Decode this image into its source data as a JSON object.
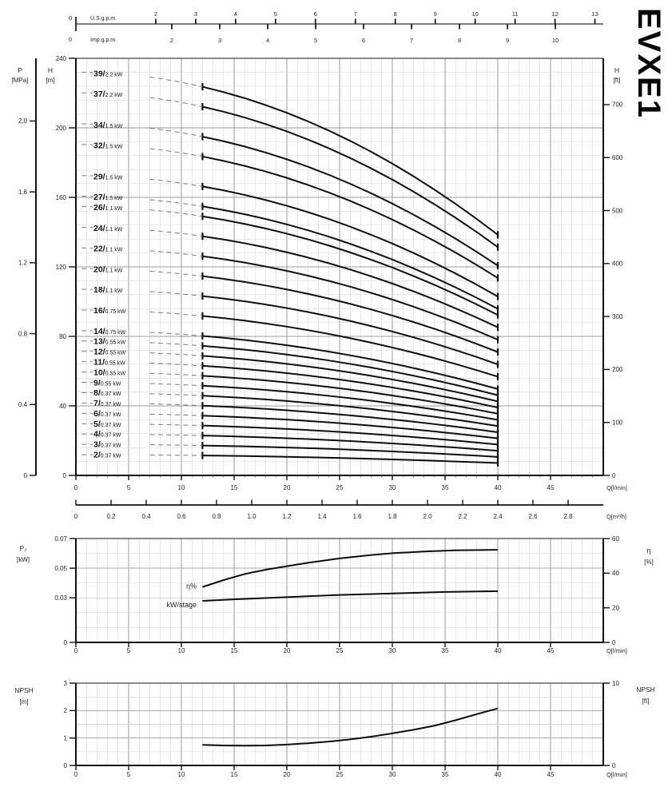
{
  "page": {
    "model_label": "EVXE1"
  },
  "colors": {
    "curve": "#0d0d0d",
    "axis": "#111111",
    "grid_minor": "#d2d2d2",
    "grid_major": "#9b9b9b",
    "dash_line": "#7a7a7a",
    "text": "#222222"
  },
  "chart_data": [
    {
      "type": "line",
      "name": "head-capacity-curves",
      "x_axis": {
        "label": "Q[l/min]",
        "min": 0,
        "max": 50,
        "major_ticks": [
          0,
          5,
          10,
          15,
          20,
          25,
          30,
          35,
          40,
          45
        ],
        "minor_step": 1
      },
      "x_axis_m3h": {
        "label": "Q[m³/h]",
        "ticks": [
          "0",
          "0.2",
          "0.4",
          "0.6",
          "0.8",
          "1.0",
          "1.2",
          "1.4",
          "1.6",
          "1.8",
          "2.0",
          "2.2",
          "2.4",
          "2.6",
          "2.8"
        ],
        "lpm_per_m3h": 16.6667
      },
      "top_axes": {
        "us_gpm": {
          "label": "U.S.g.p.m.",
          "zero": "0",
          "ticks": [
            2,
            3,
            4,
            5,
            6,
            7,
            8,
            9,
            10,
            11,
            12,
            13
          ],
          "lpm_per_unit": 3.7854
        },
        "imp_gpm": {
          "label": "Imp.g.p.m.",
          "zero": "0",
          "ticks": [
            2,
            3,
            4,
            5,
            6,
            7,
            8,
            9,
            10
          ],
          "lpm_per_unit": 4.5461
        }
      },
      "y_left": {
        "label": "H",
        "unit": "[m]",
        "min": 0,
        "max": 240,
        "ticks": [
          240,
          200,
          160,
          120,
          80,
          40,
          0
        ],
        "minor_step": 8
      },
      "y_outer_left": {
        "label": "P",
        "unit": "[MPa]",
        "ticks": [
          "2.0",
          "1.6",
          "1.2",
          "0.8",
          "0.4",
          "0"
        ],
        "meters_per_mpa": 101.97
      },
      "y_right": {
        "label": "H",
        "unit": "[ft]",
        "ticks": [
          700,
          600,
          500,
          400,
          300,
          200,
          100,
          0
        ],
        "meters_per_ft": 0.3048
      },
      "curve_model": {
        "head_per_stage_shutoff_m": 5.95,
        "quad_coeff": 0.0015,
        "q_solid": [
          12,
          40
        ],
        "q_label_dash": [
          0.55,
          1.6
        ],
        "q_lead_dash": [
          7.0,
          12.0
        ]
      },
      "series": [
        {
          "stages": "39",
          "power": "2.2 kW"
        },
        {
          "stages": "37",
          "power": "2.2 kW"
        },
        {
          "stages": "34",
          "power": "1.5 kW"
        },
        {
          "stages": "32",
          "power": "1.5 kW"
        },
        {
          "stages": "29",
          "power": "1.5 kW"
        },
        {
          "stages": "27",
          "power": "1.5 kW"
        },
        {
          "stages": "26",
          "power": "1.1 kW"
        },
        {
          "stages": "24",
          "power": "1.1 kW"
        },
        {
          "stages": "22",
          "power": "1.1 kW"
        },
        {
          "stages": "20",
          "power": "1.1 kW"
        },
        {
          "stages": "18",
          "power": "1.1 kW"
        },
        {
          "stages": "16",
          "power": "0.75 kW"
        },
        {
          "stages": "14",
          "power": "0.75 kW"
        },
        {
          "stages": "13",
          "power": "0.55 kW"
        },
        {
          "stages": "12",
          "power": "0.55 kW"
        },
        {
          "stages": "11",
          "power": "0.55 kW"
        },
        {
          "stages": "10",
          "power": "0.55 kW"
        },
        {
          "stages": "9",
          "power": "0.55 kW"
        },
        {
          "stages": "8",
          "power": "0.37 kW"
        },
        {
          "stages": "7",
          "power": "0.37 kW"
        },
        {
          "stages": "6",
          "power": "0.37 kW"
        },
        {
          "stages": "5",
          "power": "0.37 kW"
        },
        {
          "stages": "4",
          "power": "0.37 kW"
        },
        {
          "stages": "3",
          "power": "0.37 kW"
        },
        {
          "stages": "2",
          "power": "0.37 kW"
        }
      ]
    },
    {
      "type": "line",
      "name": "power-and-efficiency",
      "x_axis": {
        "label": "Q[l/min]",
        "min": 0,
        "max": 50,
        "major_ticks": [
          0,
          5,
          10,
          15,
          20,
          25,
          30,
          35,
          40,
          45
        ],
        "minor_step": 1
      },
      "y_left": {
        "label": "P₂",
        "unit": "[kW]",
        "min": 0,
        "max": 0.07,
        "ticks": [
          "0.07",
          "0.05",
          "0.03",
          "0"
        ],
        "minor_step": 0.01
      },
      "y_right": {
        "label": "η",
        "unit": "[%]",
        "min": 0,
        "max": 60,
        "ticks": [
          60,
          40,
          20,
          0
        ]
      },
      "series": [
        {
          "name": "η%",
          "axis": "right",
          "points": [
            [
              12,
              32
            ],
            [
              14,
              36
            ],
            [
              16,
              39.5
            ],
            [
              18,
              42
            ],
            [
              20,
              44
            ],
            [
              22,
              46
            ],
            [
              25,
              48.5
            ],
            [
              28,
              50.5
            ],
            [
              30,
              51.5
            ],
            [
              33,
              52.5
            ],
            [
              36,
              53.2
            ],
            [
              40,
              53.5
            ]
          ]
        },
        {
          "name": "kW/stage",
          "axis": "left",
          "points": [
            [
              12,
              0.028
            ],
            [
              15,
              0.029
            ],
            [
              20,
              0.0305
            ],
            [
              25,
              0.032
            ],
            [
              30,
              0.033
            ],
            [
              35,
              0.034
            ],
            [
              40,
              0.0345
            ]
          ]
        }
      ]
    },
    {
      "type": "line",
      "name": "npsh",
      "x_axis": {
        "label": "Q[l/min]",
        "min": 0,
        "max": 50,
        "major_ticks": [
          0,
          5,
          10,
          15,
          20,
          25,
          30,
          35,
          40,
          45
        ],
        "minor_step": 1
      },
      "y_left": {
        "label": "NPSH",
        "unit": "[m]",
        "min": 0,
        "max": 3,
        "ticks": [
          3,
          2,
          1,
          0
        ],
        "minor_step": 0.5
      },
      "y_right": {
        "label": "NPSH",
        "unit": "[ft]",
        "min": 0,
        "max": 10,
        "ticks": [
          10,
          0
        ],
        "meters_per_ft": 0.3048
      },
      "series": [
        {
          "name": "NPSH",
          "points": [
            [
              12,
              0.75
            ],
            [
              14,
              0.73
            ],
            [
              16,
              0.72
            ],
            [
              18,
              0.73
            ],
            [
              20,
              0.76
            ],
            [
              22,
              0.81
            ],
            [
              24,
              0.87
            ],
            [
              26,
              0.95
            ],
            [
              28,
              1.05
            ],
            [
              30,
              1.17
            ],
            [
              32,
              1.3
            ],
            [
              34,
              1.45
            ],
            [
              36,
              1.65
            ],
            [
              38,
              1.87
            ],
            [
              40,
              2.08
            ]
          ]
        }
      ]
    }
  ]
}
